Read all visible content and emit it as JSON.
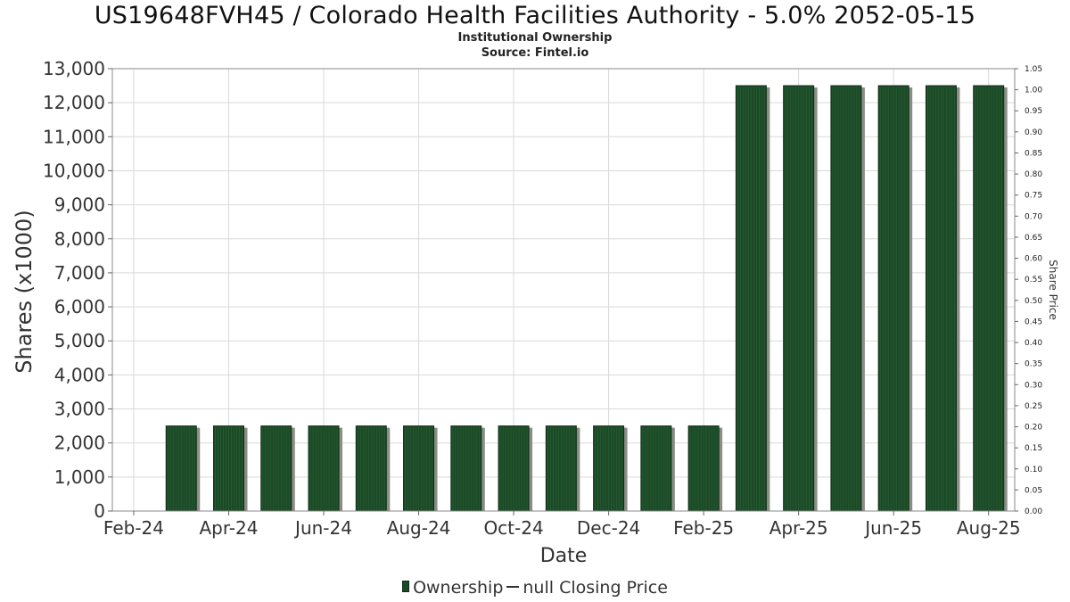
{
  "chart_data": {
    "type": "bar",
    "title": "US19648FVH45 / Colorado Health Facilities Authority - 5.0% 2052-05-15",
    "subtitle": [
      "Institutional Ownership",
      "Source: Fintel.io"
    ],
    "xlabel": "Date",
    "ylabel": "Shares (x1000)",
    "y2label": "Share Price",
    "ylim": [
      0,
      13000
    ],
    "y_ticks": [
      "0",
      "1,000",
      "2,000",
      "3,000",
      "4,000",
      "5,000",
      "6,000",
      "7,000",
      "8,000",
      "9,000",
      "10,000",
      "11,000",
      "12,000",
      "13,000"
    ],
    "y2lim": [
      0,
      1.05
    ],
    "y2_ticks": [
      "0.00",
      "0.05",
      "0.10",
      "0.15",
      "0.20",
      "0.25",
      "0.30",
      "0.35",
      "0.40",
      "0.45",
      "0.50",
      "0.55",
      "0.60",
      "0.65",
      "0.70",
      "0.75",
      "0.80",
      "0.85",
      "0.90",
      "0.95",
      "1.00",
      "1.05"
    ],
    "x_ticks": [
      "Feb-24",
      "Apr-24",
      "Jun-24",
      "Aug-24",
      "Oct-24",
      "Dec-24",
      "Feb-25",
      "Apr-25",
      "Jun-25",
      "Aug-25"
    ],
    "categories": [
      "2024-03",
      "2024-04",
      "2024-05",
      "2024-06",
      "2024-07",
      "2024-08",
      "2024-09",
      "2024-10",
      "2024-11",
      "2024-12",
      "2025-01",
      "2025-02",
      "2025-03",
      "2025-04",
      "2025-05",
      "2025-06",
      "2025-07",
      "2025-08"
    ],
    "series": [
      {
        "name": "Ownership",
        "color": "#1c4a27",
        "values": [
          2500,
          2500,
          2500,
          2500,
          2500,
          2500,
          2500,
          2500,
          2500,
          2500,
          2500,
          2500,
          12500,
          12500,
          12500,
          12500,
          12500,
          12500
        ]
      }
    ],
    "legend": {
      "position": "bottom",
      "items": [
        "Ownership",
        "null Closing Price"
      ]
    },
    "grid": true
  }
}
